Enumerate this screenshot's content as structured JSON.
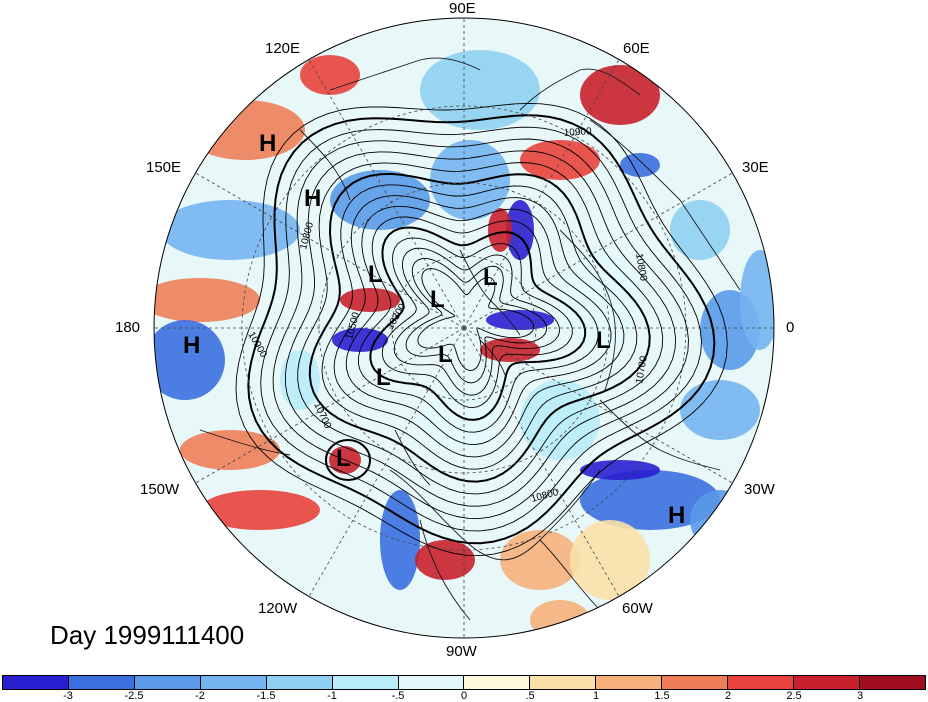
{
  "map": {
    "title": "Day 1999111400",
    "projection": "north-polar-stereographic",
    "longitude_labels": [
      {
        "text": "90E",
        "lon": "90E"
      },
      {
        "text": "60E",
        "lon": "60E"
      },
      {
        "text": "30E",
        "lon": "30E"
      },
      {
        "text": "0",
        "lon": "0"
      },
      {
        "text": "30W",
        "lon": "30W"
      },
      {
        "text": "60W",
        "lon": "60W"
      },
      {
        "text": "90W",
        "lon": "90W"
      },
      {
        "text": "120W",
        "lon": "120W"
      },
      {
        "text": "150W",
        "lon": "150W"
      },
      {
        "text": "180",
        "lon": "180"
      },
      {
        "text": "150E",
        "lon": "150E"
      },
      {
        "text": "120E",
        "lon": "120E"
      }
    ],
    "pressure_centers": [
      {
        "label": "H",
        "type": "high"
      },
      {
        "label": "H",
        "type": "high"
      },
      {
        "label": "H",
        "type": "high"
      },
      {
        "label": "H",
        "type": "high"
      },
      {
        "label": "L",
        "type": "low"
      },
      {
        "label": "L",
        "type": "low"
      },
      {
        "label": "L",
        "type": "low"
      },
      {
        "label": "L",
        "type": "low"
      },
      {
        "label": "L",
        "type": "low"
      },
      {
        "label": "L",
        "type": "low"
      },
      {
        "label": "L",
        "type": "low"
      }
    ],
    "contour_labels": [
      "10900",
      "10900",
      "10800",
      "10700",
      "10800",
      "10500",
      "10300",
      "10700",
      "10800"
    ],
    "colorbar": {
      "tick_labels": [
        "-3",
        "-2.5",
        "-2",
        "-1.5",
        "-1",
        "-.5",
        "0",
        ".5",
        "1",
        "1.5",
        "2",
        "2.5",
        "3"
      ],
      "colors": [
        "#2a1fd0",
        "#3a6fe0",
        "#5a9ae8",
        "#74b4f0",
        "#8fd0f2",
        "#b8ecf8",
        "#e2f8fc",
        "#fcf8dc",
        "#fae0a8",
        "#f5b07c",
        "#ee7e58",
        "#e8423c",
        "#c8202c",
        "#a00c20"
      ]
    }
  }
}
